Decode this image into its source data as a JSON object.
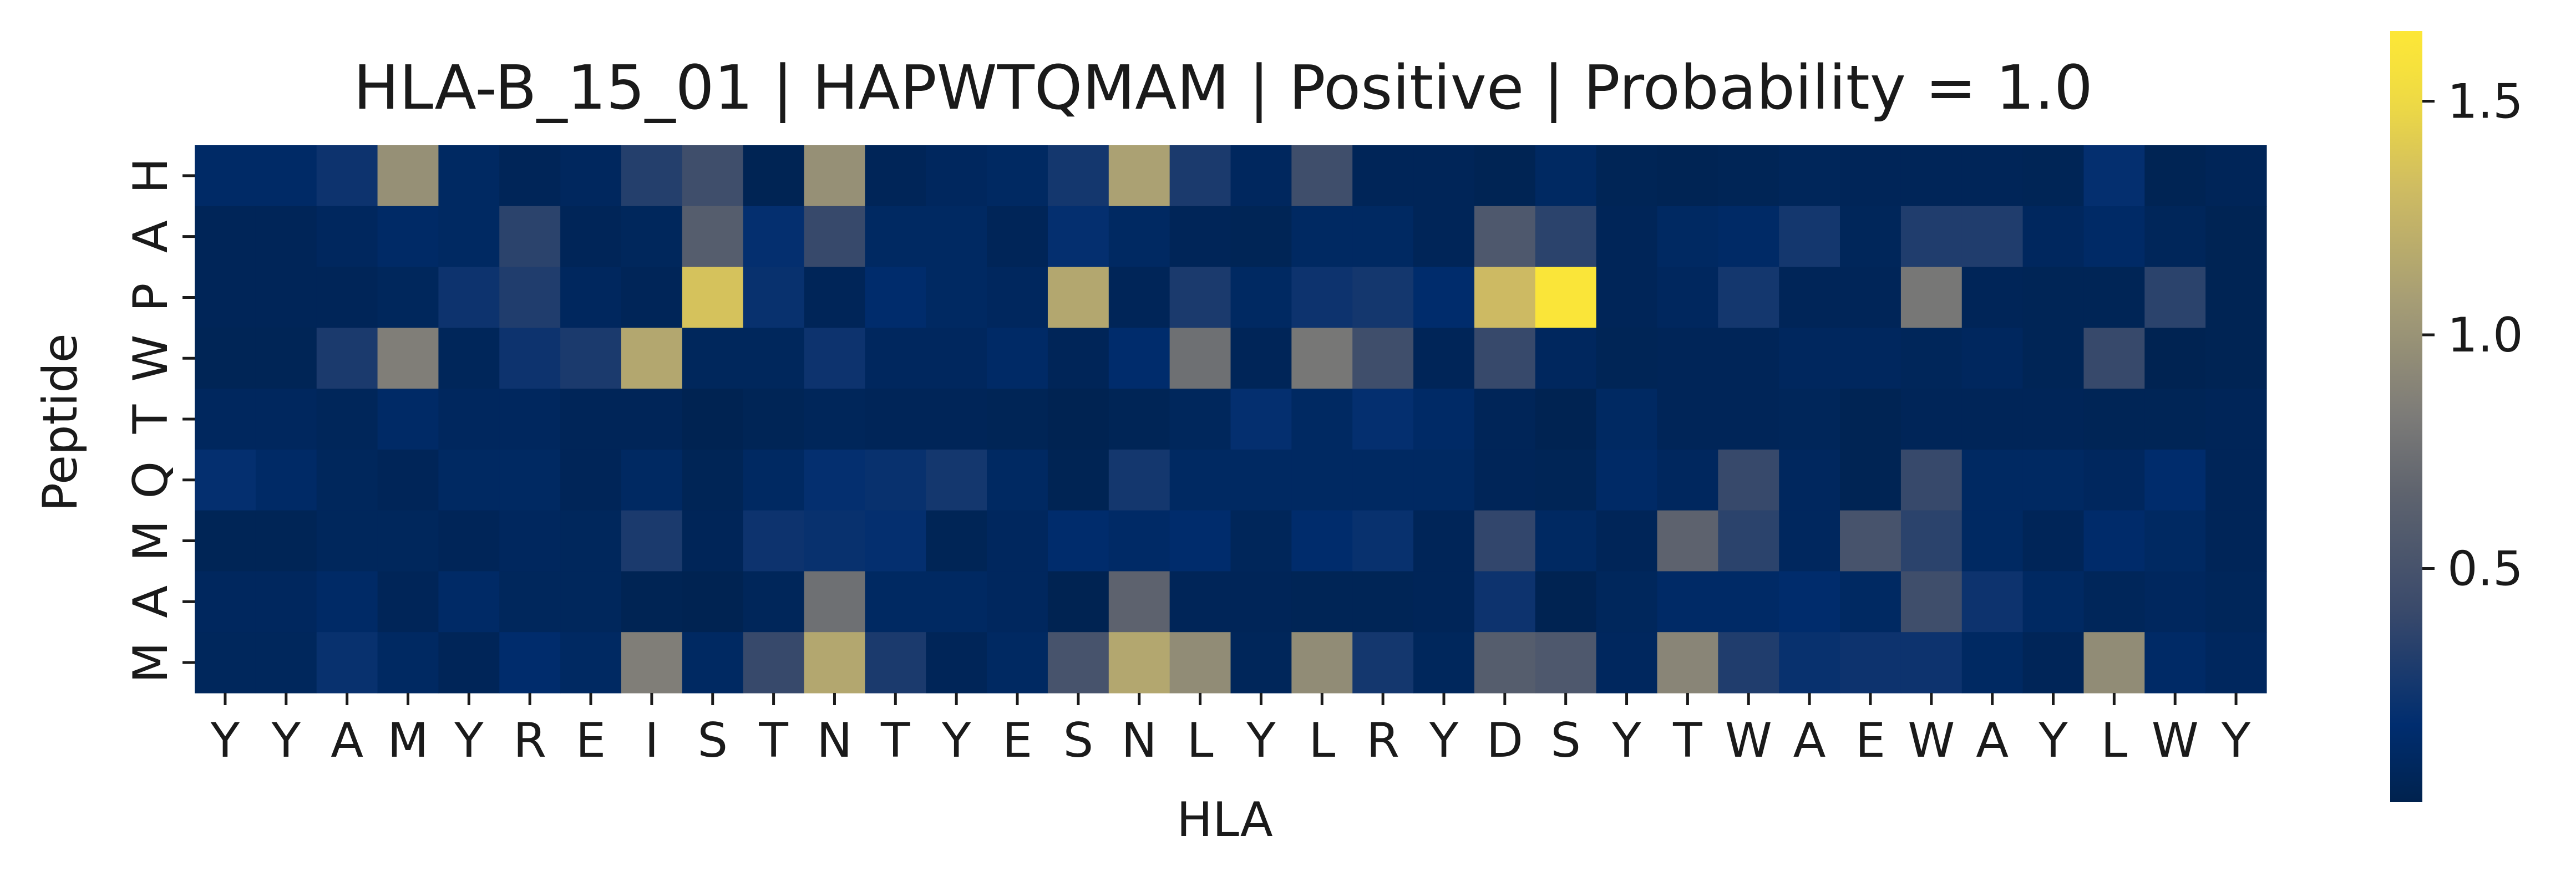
{
  "chart_data": {
    "type": "heatmap",
    "title": "HLA-B_15_01 | HAPWTQMAM | Positive | Probability = 1.0",
    "xlabel": "HLA",
    "ylabel": "Peptide",
    "x_labels": [
      "Y",
      "Y",
      "A",
      "M",
      "Y",
      "R",
      "E",
      "I",
      "S",
      "T",
      "N",
      "T",
      "Y",
      "E",
      "S",
      "N",
      "L",
      "Y",
      "L",
      "R",
      "Y",
      "D",
      "S",
      "Y",
      "T",
      "W",
      "A",
      "E",
      "W",
      "A",
      "Y",
      "L",
      "W",
      "Y"
    ],
    "y_labels": [
      "H",
      "A",
      "P",
      "W",
      "T",
      "Q",
      "M",
      "A",
      "M"
    ],
    "values": [
      [
        0.12,
        0.12,
        0.22,
        0.98,
        0.1,
        0.05,
        0.08,
        0.32,
        0.45,
        0.03,
        0.98,
        0.05,
        0.08,
        0.1,
        0.25,
        1.1,
        0.28,
        0.08,
        0.45,
        0.05,
        0.05,
        0.03,
        0.1,
        0.04,
        0.03,
        0.04,
        0.06,
        0.05,
        0.05,
        0.05,
        0.04,
        0.18,
        0.03,
        0.05
      ],
      [
        0.05,
        0.05,
        0.08,
        0.12,
        0.1,
        0.35,
        0.05,
        0.07,
        0.6,
        0.18,
        0.4,
        0.1,
        0.1,
        0.05,
        0.18,
        0.1,
        0.05,
        0.04,
        0.1,
        0.1,
        0.05,
        0.55,
        0.35,
        0.05,
        0.1,
        0.12,
        0.25,
        0.06,
        0.3,
        0.3,
        0.08,
        0.12,
        0.06,
        0.03
      ],
      [
        0.05,
        0.05,
        0.05,
        0.07,
        0.22,
        0.3,
        0.08,
        0.05,
        1.35,
        0.2,
        0.05,
        0.15,
        0.1,
        0.08,
        1.15,
        0.05,
        0.28,
        0.1,
        0.22,
        0.25,
        0.15,
        1.3,
        1.62,
        0.05,
        0.08,
        0.25,
        0.05,
        0.05,
        0.8,
        0.05,
        0.04,
        0.04,
        0.35,
        0.03
      ],
      [
        0.04,
        0.04,
        0.28,
        0.85,
        0.06,
        0.22,
        0.28,
        1.15,
        0.07,
        0.07,
        0.22,
        0.08,
        0.08,
        0.12,
        0.05,
        0.15,
        0.75,
        0.05,
        0.8,
        0.45,
        0.05,
        0.4,
        0.08,
        0.04,
        0.05,
        0.05,
        0.08,
        0.08,
        0.06,
        0.08,
        0.04,
        0.4,
        0.02,
        0.03
      ],
      [
        0.08,
        0.08,
        0.06,
        0.12,
        0.08,
        0.08,
        0.05,
        0.05,
        0.02,
        0.04,
        0.06,
        0.05,
        0.05,
        0.04,
        0.02,
        0.04,
        0.07,
        0.18,
        0.1,
        0.18,
        0.12,
        0.05,
        0.02,
        0.1,
        0.05,
        0.05,
        0.06,
        0.03,
        0.05,
        0.05,
        0.05,
        0.04,
        0.04,
        0.05
      ],
      [
        0.18,
        0.12,
        0.07,
        0.05,
        0.1,
        0.1,
        0.05,
        0.1,
        0.04,
        0.1,
        0.18,
        0.2,
        0.25,
        0.1,
        0.03,
        0.25,
        0.1,
        0.1,
        0.1,
        0.1,
        0.1,
        0.05,
        0.04,
        0.12,
        0.08,
        0.4,
        0.08,
        0.03,
        0.4,
        0.1,
        0.1,
        0.08,
        0.15,
        0.05
      ],
      [
        0.04,
        0.04,
        0.07,
        0.07,
        0.05,
        0.08,
        0.07,
        0.28,
        0.05,
        0.22,
        0.2,
        0.18,
        0.04,
        0.08,
        0.15,
        0.12,
        0.15,
        0.06,
        0.15,
        0.2,
        0.05,
        0.38,
        0.1,
        0.05,
        0.65,
        0.35,
        0.08,
        0.5,
        0.35,
        0.1,
        0.05,
        0.14,
        0.1,
        0.05
      ],
      [
        0.08,
        0.08,
        0.12,
        0.05,
        0.12,
        0.07,
        0.07,
        0.03,
        0.02,
        0.06,
        0.75,
        0.1,
        0.1,
        0.08,
        0.02,
        0.65,
        0.05,
        0.05,
        0.04,
        0.04,
        0.05,
        0.22,
        0.02,
        0.07,
        0.12,
        0.12,
        0.15,
        0.1,
        0.45,
        0.22,
        0.1,
        0.06,
        0.08,
        0.06
      ],
      [
        0.07,
        0.07,
        0.2,
        0.1,
        0.05,
        0.15,
        0.1,
        0.85,
        0.1,
        0.4,
        1.15,
        0.28,
        0.05,
        0.1,
        0.5,
        1.15,
        0.95,
        0.06,
        0.95,
        0.25,
        0.07,
        0.6,
        0.55,
        0.08,
        0.9,
        0.3,
        0.2,
        0.22,
        0.22,
        0.1,
        0.05,
        0.95,
        0.12,
        0.08
      ]
    ],
    "colorbar": {
      "colormap": "cividis",
      "vmin": 0.0,
      "vmax": 1.65,
      "ticks": [
        0.5,
        1.0,
        1.5
      ],
      "tick_labels": [
        "0.5",
        "1.0",
        "1.5"
      ]
    },
    "grid": false
  }
}
